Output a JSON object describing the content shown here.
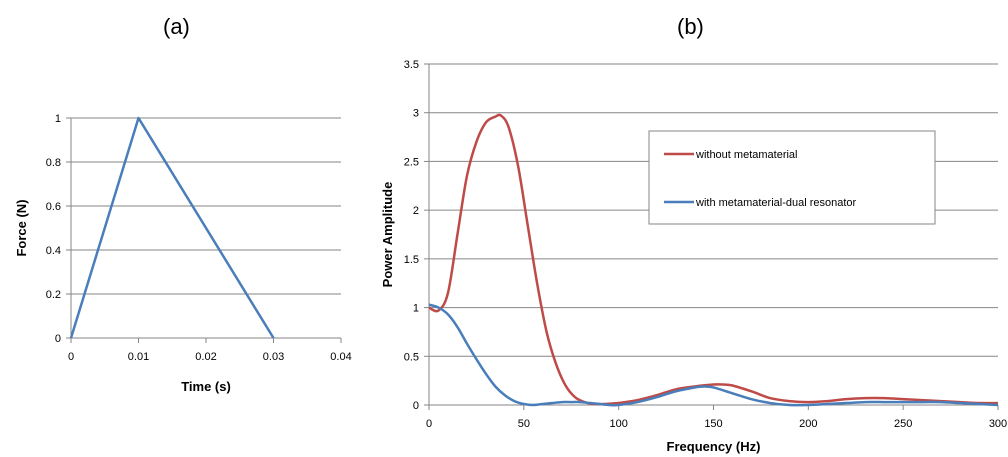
{
  "panels": {
    "a_label": "(a)",
    "b_label": "(b)"
  },
  "chart_data": [
    {
      "type": "line",
      "title": "(a)",
      "xlabel": "Time (s)",
      "ylabel": "Force (N)",
      "xlim": [
        0,
        0.04
      ],
      "ylim": [
        0,
        1
      ],
      "xticks": [
        "0",
        "0.01",
        "0.02",
        "0.03",
        "0.04"
      ],
      "yticks": [
        "0",
        "0.2",
        "0.4",
        "0.6",
        "0.8",
        "1"
      ],
      "grid": "horizontal",
      "series": [
        {
          "color": "#4a7ebb",
          "x": [
            0,
            0.01,
            0.03
          ],
          "y": [
            0,
            1,
            0
          ]
        }
      ]
    },
    {
      "type": "line",
      "title": "(b)",
      "xlabel": "Frequency (Hz)",
      "ylabel": "Power Amplitude",
      "xlim": [
        0,
        300
      ],
      "ylim": [
        0,
        3.5
      ],
      "xticks": [
        "0",
        "50",
        "100",
        "150",
        "200",
        "250",
        "300"
      ],
      "yticks": [
        "0",
        "0.5",
        "1",
        "1.5",
        "2",
        "2.5",
        "3",
        "3.5"
      ],
      "grid": "horizontal",
      "legend": "top-right",
      "series": [
        {
          "name": "without metamaterial",
          "color": "#be4b48",
          "x": [
            0,
            5,
            10,
            15,
            20,
            25,
            30,
            35,
            38,
            42,
            47,
            52,
            57,
            62,
            67,
            72,
            77,
            82,
            87,
            92,
            100,
            110,
            120,
            130,
            140,
            150,
            155,
            160,
            170,
            180,
            190,
            200,
            210,
            220,
            230,
            240,
            250,
            260,
            270,
            280,
            290,
            300
          ],
          "y": [
            1.0,
            0.97,
            1.15,
            1.75,
            2.35,
            2.7,
            2.9,
            2.96,
            2.97,
            2.85,
            2.45,
            1.85,
            1.25,
            0.75,
            0.42,
            0.2,
            0.08,
            0.03,
            0.01,
            0.01,
            0.02,
            0.05,
            0.1,
            0.16,
            0.19,
            0.21,
            0.21,
            0.2,
            0.14,
            0.07,
            0.04,
            0.03,
            0.04,
            0.06,
            0.07,
            0.07,
            0.06,
            0.05,
            0.04,
            0.03,
            0.02,
            0.02
          ]
        },
        {
          "name": "with metamaterial-dual resonator",
          "color": "#4a7ebb",
          "x": [
            0,
            5,
            10,
            15,
            20,
            25,
            30,
            35,
            40,
            45,
            50,
            55,
            60,
            65,
            70,
            75,
            80,
            85,
            90,
            95,
            100,
            110,
            120,
            130,
            140,
            145,
            150,
            160,
            170,
            180,
            190,
            200,
            210,
            220,
            230,
            240,
            250,
            260,
            270,
            280,
            290,
            300
          ],
          "y": [
            1.03,
            1.0,
            0.93,
            0.8,
            0.63,
            0.47,
            0.32,
            0.19,
            0.1,
            0.04,
            0.01,
            0.0,
            0.01,
            0.02,
            0.03,
            0.03,
            0.03,
            0.02,
            0.01,
            0.0,
            0.0,
            0.03,
            0.08,
            0.14,
            0.18,
            0.19,
            0.18,
            0.12,
            0.06,
            0.02,
            0.0,
            0.0,
            0.01,
            0.02,
            0.03,
            0.03,
            0.03,
            0.03,
            0.03,
            0.02,
            0.01,
            0.0
          ]
        }
      ]
    }
  ]
}
